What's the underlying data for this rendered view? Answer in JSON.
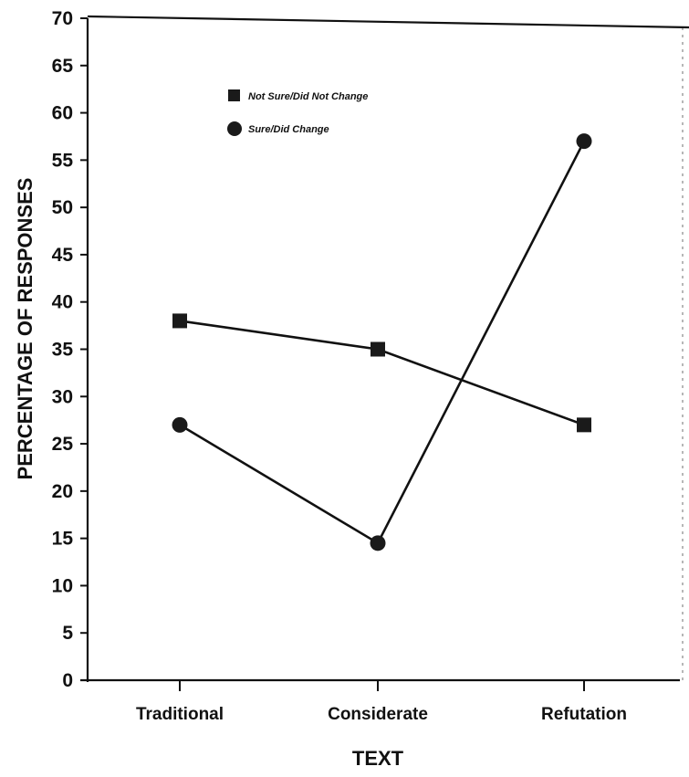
{
  "chart_data": {
    "type": "line",
    "title": "",
    "xlabel": "TEXT",
    "ylabel": "PERCENTAGE OF RESPONSES",
    "categories": [
      "Traditional",
      "Considerate",
      "Refutation"
    ],
    "ylim": [
      0,
      70
    ],
    "yticks": [
      0,
      5,
      10,
      15,
      20,
      25,
      30,
      35,
      40,
      45,
      50,
      55,
      60,
      65,
      70
    ],
    "grid": false,
    "legend_position": "top-left",
    "series": [
      {
        "name": "Not Sure/Did Not Change",
        "marker": "square",
        "values": [
          38,
          35,
          27
        ]
      },
      {
        "name": "Sure/Did Change",
        "marker": "circle",
        "values": [
          27,
          14.5,
          57
        ]
      }
    ]
  },
  "colors": {
    "line": "#111111",
    "marker": "#1a1a1a",
    "background": "#ffffff"
  }
}
